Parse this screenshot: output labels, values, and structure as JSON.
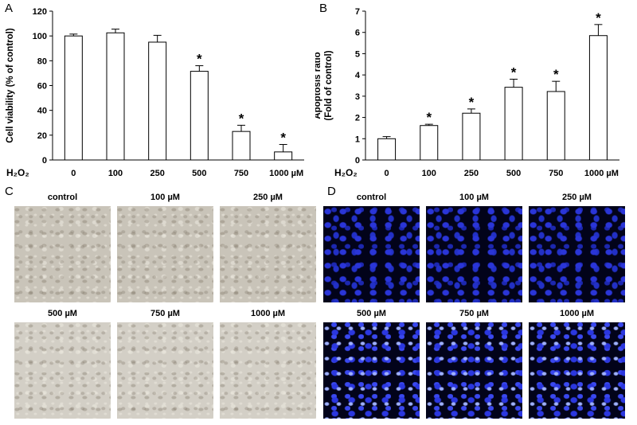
{
  "panels": {
    "a_letter": "A",
    "b_letter": "B",
    "c_letter": "C",
    "d_letter": "D"
  },
  "chart_data": [
    {
      "type": "bar",
      "ylabel": "Cell viability (% of control)",
      "xlabel_prefix": "H₂O₂",
      "categories": [
        "0",
        "100",
        "250",
        "500",
        "750",
        "1000 µM"
      ],
      "values": [
        100,
        102.5,
        95,
        71.5,
        23,
        6.5
      ],
      "errors": [
        1.5,
        3,
        5.5,
        4.5,
        5,
        6
      ],
      "significant": [
        false,
        false,
        false,
        true,
        true,
        true
      ],
      "significance_mark": "*",
      "ylim": [
        0,
        120
      ],
      "yticks": [
        "0",
        "20",
        "40",
        "60",
        "80",
        "100",
        "120"
      ]
    },
    {
      "type": "bar",
      "ylabel": "Apoptosis ratio",
      "ylabel2": "(Fold of control)",
      "xlabel_prefix": "H₂O₂",
      "categories": [
        "0",
        "100",
        "250",
        "500",
        "750",
        "1000 µM"
      ],
      "values": [
        1.0,
        1.62,
        2.2,
        3.42,
        3.22,
        5.85
      ],
      "errors": [
        0.1,
        0.06,
        0.2,
        0.38,
        0.48,
        0.52
      ],
      "significant": [
        false,
        true,
        true,
        true,
        true,
        true
      ],
      "significance_mark": "*",
      "ylim": [
        0,
        7
      ],
      "yticks": [
        "0",
        "1",
        "2",
        "3",
        "4",
        "5",
        "6",
        "7"
      ]
    }
  ],
  "panel_c": {
    "labels": [
      "control",
      "100 µM",
      "250 µM",
      "500 µM",
      "750 µM",
      "1000 µM"
    ]
  },
  "panel_d": {
    "labels": [
      "control",
      "100 µM",
      "250 µM",
      "500 µM",
      "750 µM",
      "1000 µM"
    ]
  }
}
